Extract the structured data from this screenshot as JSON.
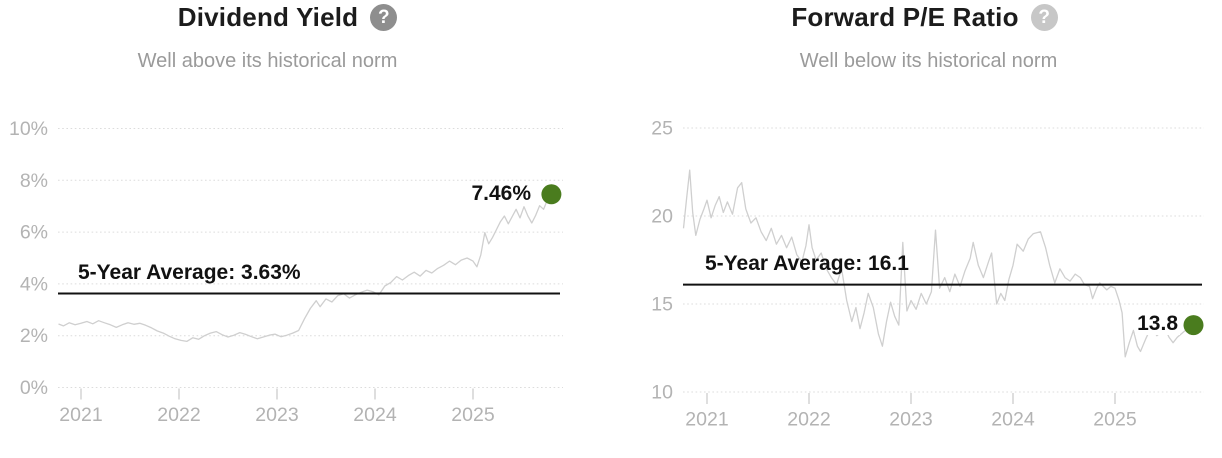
{
  "colors": {
    "background": "#ffffff",
    "title_text": "#1c1c1c",
    "subtitle_text": "#9a9a9a",
    "axis_text": "#b3b3b3",
    "gridline": "#dcdcdc",
    "tick_mark": "#c9c9c9",
    "series_line": "#cfcfcf",
    "average_line": "#111111",
    "dot_green": "#4a7c1e",
    "help_icon_dark": "#8e8e8e",
    "help_icon_light": "#c7c7c7"
  },
  "chart_data": [
    {
      "type": "line",
      "title": "Dividend Yield",
      "subtitle": "Well above its historical norm",
      "help_glyph": "?",
      "legend": "none",
      "grid": "horizontal dotted",
      "ylim": [
        0,
        10
      ],
      "xlim": [
        2020.77,
        2025.85
      ],
      "yticks": [
        {
          "v": 0,
          "label": "0%"
        },
        {
          "v": 2,
          "label": "2%"
        },
        {
          "v": 4,
          "label": "4%"
        },
        {
          "v": 6,
          "label": "6%"
        },
        {
          "v": 8,
          "label": "8%"
        },
        {
          "v": 10,
          "label": "10%"
        }
      ],
      "xticks": [
        {
          "v": 2021,
          "label": "2021"
        },
        {
          "v": 2022,
          "label": "2022"
        },
        {
          "v": 2023,
          "label": "2023"
        },
        {
          "v": 2024,
          "label": "2024"
        },
        {
          "v": 2025,
          "label": "2025"
        }
      ],
      "average": 3.63,
      "average_label": "5-Year Average: 3.63%",
      "latest": 7.46,
      "latest_label": "7.46%",
      "series": [
        {
          "name": "Dividend Yield",
          "points": [
            [
              2020.77,
              2.45
            ],
            [
              2020.82,
              2.38
            ],
            [
              2020.88,
              2.5
            ],
            [
              2020.94,
              2.42
            ],
            [
              2021.0,
              2.48
            ],
            [
              2021.06,
              2.55
            ],
            [
              2021.12,
              2.46
            ],
            [
              2021.18,
              2.58
            ],
            [
              2021.24,
              2.5
            ],
            [
              2021.3,
              2.42
            ],
            [
              2021.36,
              2.32
            ],
            [
              2021.42,
              2.42
            ],
            [
              2021.48,
              2.5
            ],
            [
              2021.54,
              2.44
            ],
            [
              2021.6,
              2.48
            ],
            [
              2021.66,
              2.4
            ],
            [
              2021.72,
              2.3
            ],
            [
              2021.78,
              2.18
            ],
            [
              2021.84,
              2.1
            ],
            [
              2021.9,
              1.98
            ],
            [
              2021.96,
              1.88
            ],
            [
              2022.02,
              1.82
            ],
            [
              2022.08,
              1.78
            ],
            [
              2022.14,
              1.92
            ],
            [
              2022.2,
              1.86
            ],
            [
              2022.26,
              2.0
            ],
            [
              2022.32,
              2.1
            ],
            [
              2022.38,
              2.16
            ],
            [
              2022.44,
              2.04
            ],
            [
              2022.5,
              1.95
            ],
            [
              2022.56,
              2.02
            ],
            [
              2022.62,
              2.12
            ],
            [
              2022.68,
              2.05
            ],
            [
              2022.74,
              1.96
            ],
            [
              2022.8,
              1.88
            ],
            [
              2022.86,
              1.95
            ],
            [
              2022.92,
              2.02
            ],
            [
              2022.98,
              2.06
            ],
            [
              2023.04,
              1.96
            ],
            [
              2023.1,
              2.02
            ],
            [
              2023.16,
              2.1
            ],
            [
              2023.22,
              2.2
            ],
            [
              2023.28,
              2.65
            ],
            [
              2023.34,
              3.05
            ],
            [
              2023.4,
              3.35
            ],
            [
              2023.44,
              3.12
            ],
            [
              2023.5,
              3.42
            ],
            [
              2023.56,
              3.3
            ],
            [
              2023.62,
              3.55
            ],
            [
              2023.68,
              3.62
            ],
            [
              2023.74,
              3.45
            ],
            [
              2023.8,
              3.58
            ],
            [
              2023.86,
              3.68
            ],
            [
              2023.92,
              3.76
            ],
            [
              2023.98,
              3.7
            ],
            [
              2024.04,
              3.58
            ],
            [
              2024.1,
              3.92
            ],
            [
              2024.16,
              4.05
            ],
            [
              2024.22,
              4.28
            ],
            [
              2024.28,
              4.15
            ],
            [
              2024.34,
              4.32
            ],
            [
              2024.4,
              4.45
            ],
            [
              2024.46,
              4.3
            ],
            [
              2024.52,
              4.52
            ],
            [
              2024.58,
              4.42
            ],
            [
              2024.64,
              4.6
            ],
            [
              2024.7,
              4.72
            ],
            [
              2024.76,
              4.88
            ],
            [
              2024.82,
              4.74
            ],
            [
              2024.88,
              4.92
            ],
            [
              2024.94,
              5.0
            ],
            [
              2025.0,
              4.88
            ],
            [
              2025.04,
              4.66
            ],
            [
              2025.08,
              5.12
            ],
            [
              2025.12,
              5.98
            ],
            [
              2025.16,
              5.55
            ],
            [
              2025.2,
              5.8
            ],
            [
              2025.24,
              6.1
            ],
            [
              2025.28,
              6.4
            ],
            [
              2025.32,
              6.62
            ],
            [
              2025.36,
              6.32
            ],
            [
              2025.4,
              6.6
            ],
            [
              2025.44,
              6.88
            ],
            [
              2025.48,
              6.55
            ],
            [
              2025.52,
              6.98
            ],
            [
              2025.56,
              6.62
            ],
            [
              2025.6,
              6.35
            ],
            [
              2025.64,
              6.65
            ],
            [
              2025.68,
              7.02
            ],
            [
              2025.72,
              6.88
            ],
            [
              2025.76,
              7.25
            ],
            [
              2025.8,
              7.46
            ]
          ]
        }
      ]
    },
    {
      "type": "line",
      "title": "Forward P/E Ratio",
      "subtitle": "Well below its historical norm",
      "help_glyph": "?",
      "legend": "none",
      "grid": "horizontal dotted",
      "ylim": [
        10,
        25
      ],
      "xlim": [
        2020.77,
        2025.85
      ],
      "yticks": [
        {
          "v": 10,
          "label": "10"
        },
        {
          "v": 15,
          "label": "15"
        },
        {
          "v": 20,
          "label": "20"
        },
        {
          "v": 25,
          "label": "25"
        }
      ],
      "xticks": [
        {
          "v": 2021,
          "label": "2021"
        },
        {
          "v": 2022,
          "label": "2022"
        },
        {
          "v": 2023,
          "label": "2023"
        },
        {
          "v": 2024,
          "label": "2024"
        },
        {
          "v": 2025,
          "label": "2025"
        }
      ],
      "average": 16.1,
      "average_label": "5-Year Average: 16.1",
      "latest": 13.8,
      "latest_label": "13.8",
      "series": [
        {
          "name": "Forward P/E Ratio",
          "points": [
            [
              2020.77,
              19.3
            ],
            [
              2020.8,
              21.0
            ],
            [
              2020.83,
              22.6
            ],
            [
              2020.86,
              20.2
            ],
            [
              2020.89,
              18.9
            ],
            [
              2020.93,
              19.8
            ],
            [
              2020.97,
              20.4
            ],
            [
              2021.0,
              20.9
            ],
            [
              2021.04,
              19.9
            ],
            [
              2021.08,
              20.6
            ],
            [
              2021.12,
              21.1
            ],
            [
              2021.16,
              20.2
            ],
            [
              2021.2,
              20.8
            ],
            [
              2021.25,
              20.1
            ],
            [
              2021.3,
              21.6
            ],
            [
              2021.34,
              21.9
            ],
            [
              2021.38,
              20.4
            ],
            [
              2021.43,
              19.6
            ],
            [
              2021.48,
              19.9
            ],
            [
              2021.53,
              19.1
            ],
            [
              2021.58,
              18.6
            ],
            [
              2021.63,
              19.3
            ],
            [
              2021.68,
              18.4
            ],
            [
              2021.73,
              18.9
            ],
            [
              2021.78,
              18.2
            ],
            [
              2021.83,
              18.8
            ],
            [
              2021.88,
              17.8
            ],
            [
              2021.93,
              17.4
            ],
            [
              2021.97,
              18.3
            ],
            [
              2022.0,
              19.5
            ],
            [
              2022.03,
              18.2
            ],
            [
              2022.07,
              17.5
            ],
            [
              2022.12,
              17.9
            ],
            [
              2022.17,
              17.0
            ],
            [
              2022.22,
              16.5
            ],
            [
              2022.27,
              16.1
            ],
            [
              2022.32,
              17.0
            ],
            [
              2022.37,
              15.2
            ],
            [
              2022.42,
              14.0
            ],
            [
              2022.46,
              14.8
            ],
            [
              2022.5,
              13.6
            ],
            [
              2022.54,
              14.5
            ],
            [
              2022.58,
              15.6
            ],
            [
              2022.63,
              14.8
            ],
            [
              2022.68,
              13.3
            ],
            [
              2022.72,
              12.6
            ],
            [
              2022.76,
              14.0
            ],
            [
              2022.8,
              15.1
            ],
            [
              2022.84,
              14.3
            ],
            [
              2022.88,
              13.8
            ],
            [
              2022.92,
              18.5
            ],
            [
              2022.96,
              14.6
            ],
            [
              2023.0,
              15.2
            ],
            [
              2023.05,
              14.7
            ],
            [
              2023.1,
              15.6
            ],
            [
              2023.15,
              15.0
            ],
            [
              2023.2,
              15.7
            ],
            [
              2023.24,
              19.2
            ],
            [
              2023.28,
              15.9
            ],
            [
              2023.33,
              16.5
            ],
            [
              2023.38,
              15.7
            ],
            [
              2023.43,
              16.7
            ],
            [
              2023.48,
              16.0
            ],
            [
              2023.53,
              16.9
            ],
            [
              2023.58,
              17.6
            ],
            [
              2023.61,
              18.5
            ],
            [
              2023.66,
              17.2
            ],
            [
              2023.71,
              16.5
            ],
            [
              2023.76,
              17.4
            ],
            [
              2023.79,
              17.9
            ],
            [
              2023.84,
              15.0
            ],
            [
              2023.88,
              15.6
            ],
            [
              2023.92,
              15.2
            ],
            [
              2023.96,
              16.4
            ],
            [
              2024.0,
              17.2
            ],
            [
              2024.04,
              18.4
            ],
            [
              2024.1,
              18.0
            ],
            [
              2024.15,
              18.7
            ],
            [
              2024.2,
              19.0
            ],
            [
              2024.27,
              19.1
            ],
            [
              2024.32,
              18.2
            ],
            [
              2024.36,
              17.2
            ],
            [
              2024.41,
              16.2
            ],
            [
              2024.46,
              17.0
            ],
            [
              2024.51,
              16.5
            ],
            [
              2024.56,
              16.3
            ],
            [
              2024.61,
              16.7
            ],
            [
              2024.66,
              16.5
            ],
            [
              2024.7,
              16.1
            ],
            [
              2024.75,
              16.0
            ],
            [
              2024.78,
              15.3
            ],
            [
              2024.82,
              15.9
            ],
            [
              2024.85,
              16.2
            ],
            [
              2024.92,
              15.8
            ],
            [
              2024.96,
              16.0
            ],
            [
              2025.0,
              15.9
            ],
            [
              2025.04,
              15.2
            ],
            [
              2025.07,
              14.5
            ],
            [
              2025.1,
              12.0
            ],
            [
              2025.14,
              12.8
            ],
            [
              2025.18,
              13.5
            ],
            [
              2025.22,
              12.6
            ],
            [
              2025.25,
              12.3
            ],
            [
              2025.3,
              13.0
            ],
            [
              2025.34,
              13.5
            ],
            [
              2025.37,
              13.6
            ],
            [
              2025.41,
              13.2
            ],
            [
              2025.45,
              13.4
            ],
            [
              2025.49,
              13.6
            ],
            [
              2025.53,
              13.1
            ],
            [
              2025.57,
              12.8
            ],
            [
              2025.61,
              13.1
            ],
            [
              2025.65,
              13.3
            ],
            [
              2025.69,
              13.5
            ],
            [
              2025.73,
              13.3
            ],
            [
              2025.77,
              13.8
            ]
          ]
        }
      ]
    }
  ]
}
